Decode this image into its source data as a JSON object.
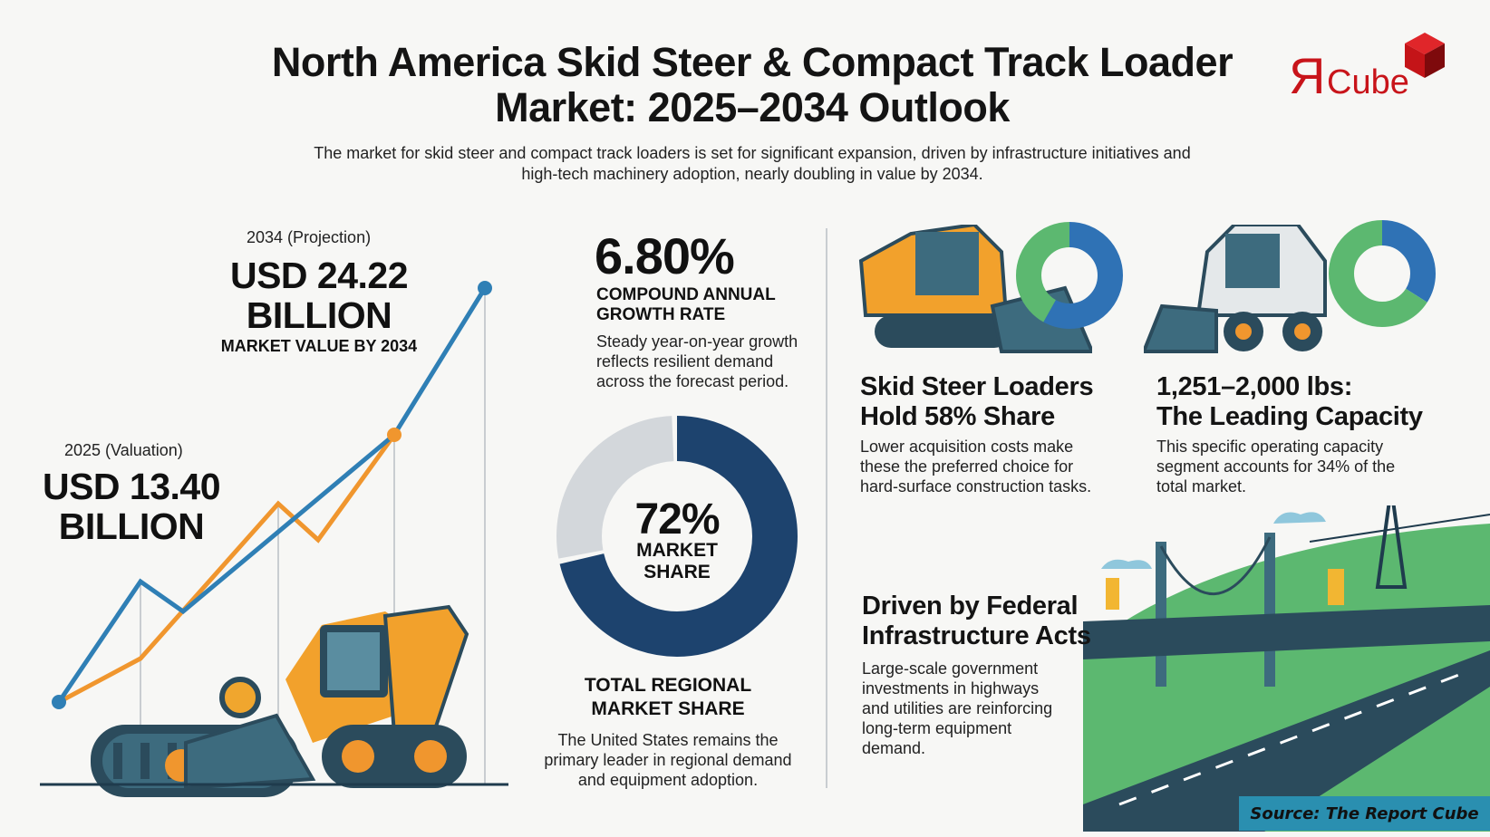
{
  "header": {
    "title": "North America Skid Steer & Compact Track Loader Market: 2025–2034 Outlook",
    "subtitle": "The market for skid steer and compact track loaders is set for significant expansion, driven by infrastructure initiatives and high-tech machinery adoption, nearly doubling in value by 2034.",
    "logo_text": "ЯCube",
    "logo_color": "#c8141a"
  },
  "projection": {
    "label": "2034 (Projection)",
    "value_line1": "USD 24.22",
    "value_line2": "BILLION",
    "caption": "MARKET VALUE BY 2034"
  },
  "valuation": {
    "label": "2025 (Valuation)",
    "value_line1": "USD 13.40",
    "value_line2": "BILLION"
  },
  "trend_colors": {
    "blue": "#2f7fb5",
    "orange": "#f0962e"
  },
  "cagr": {
    "value": "6.80%",
    "label": "COMPOUND ANNUAL\nGROWTH RATE",
    "description": "Steady year-on-year growth\nreflects resilient demand\nacross the forecast period."
  },
  "regional": {
    "share_percent": 72,
    "share_text": "72%",
    "share_label": "MARKET\nSHARE",
    "title": "TOTAL REGIONAL\nMARKET SHARE",
    "description": "The United States remains the\nprimary leader in regional demand\nand equipment adoption.",
    "colors": {
      "primary": "#1d436e",
      "rest": "#d3d7db"
    }
  },
  "skid_steer": {
    "share_percent": 58,
    "title": "Skid Steer Loaders\nHold 58% Share",
    "description": "Lower acquisition costs make\nthese the preferred choice for\nhard-surface construction tasks."
  },
  "capacity": {
    "share_percent": 34,
    "title": "1,251–2,000 lbs:\nThe Leading Capacity",
    "description": "This specific operating capacity\nsegment accounts for 34% of the\ntotal market."
  },
  "infrastructure": {
    "title": "Driven by Federal\nInfrastructure Acts",
    "description": "Large-scale government\ninvestments in highways\nand utilities are reinforcing\nlong-term equipment\ndemand."
  },
  "mini_donut_colors": {
    "primary": "#2f72b5",
    "rest": "#5cb870"
  },
  "source": "Source: The Report Cube"
}
